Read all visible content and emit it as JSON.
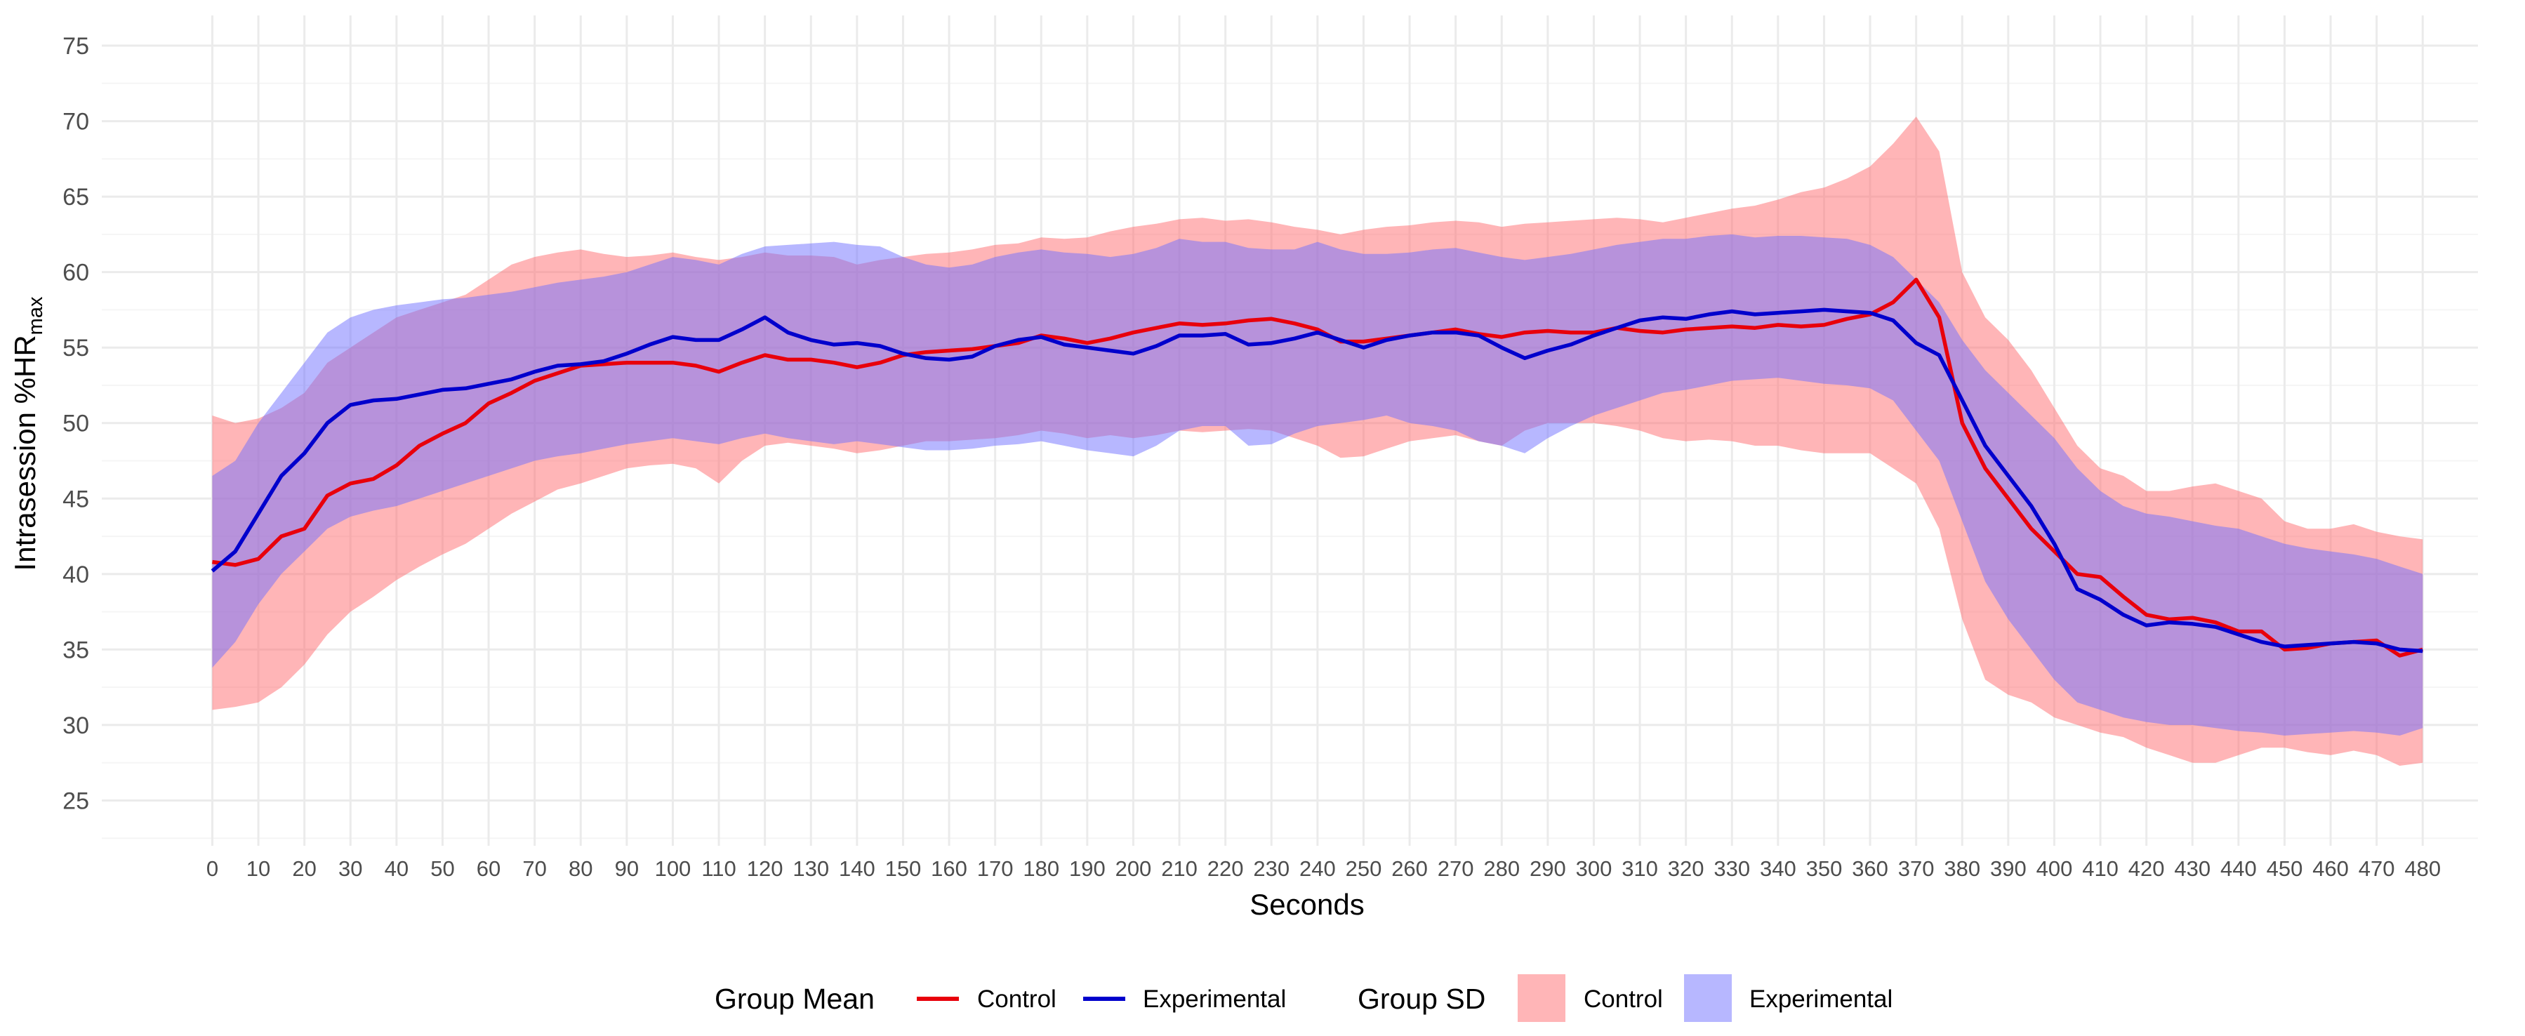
{
  "chart_data": {
    "type": "line",
    "title": "",
    "xlabel": "Seconds",
    "ylabel": "Intrasession %HR",
    "ylabel_subscript": "max",
    "xlim": [
      -24,
      492
    ],
    "ylim": [
      22,
      77
    ],
    "x_ticks": [
      0,
      10,
      20,
      30,
      40,
      50,
      60,
      70,
      80,
      90,
      100,
      110,
      120,
      130,
      140,
      150,
      160,
      170,
      180,
      190,
      200,
      210,
      220,
      230,
      240,
      250,
      260,
      270,
      280,
      290,
      300,
      310,
      320,
      330,
      340,
      350,
      360,
      370,
      380,
      390,
      400,
      410,
      420,
      430,
      440,
      450,
      460,
      470,
      480
    ],
    "y_ticks": [
      25,
      30,
      35,
      40,
      45,
      50,
      55,
      60,
      65,
      70,
      75
    ],
    "series": [
      {
        "name": "Control",
        "color": "#e8000b",
        "x": [
          0,
          5,
          10,
          15,
          20,
          25,
          30,
          35,
          40,
          45,
          50,
          55,
          60,
          65,
          70,
          75,
          80,
          85,
          90,
          95,
          100,
          105,
          110,
          115,
          120,
          125,
          130,
          135,
          140,
          145,
          150,
          155,
          160,
          165,
          170,
          175,
          180,
          185,
          190,
          195,
          200,
          205,
          210,
          215,
          220,
          225,
          230,
          235,
          240,
          245,
          250,
          255,
          260,
          265,
          270,
          275,
          280,
          285,
          290,
          295,
          300,
          305,
          310,
          315,
          320,
          325,
          330,
          335,
          340,
          345,
          350,
          355,
          360,
          365,
          370,
          375,
          380,
          385,
          390,
          395,
          400,
          405,
          410,
          415,
          420,
          425,
          430,
          435,
          440,
          445,
          450,
          455,
          460,
          465,
          470,
          475,
          480
        ],
        "values": [
          40.8,
          40.6,
          41.0,
          42.5,
          43.0,
          45.2,
          46.0,
          46.3,
          47.2,
          48.5,
          49.3,
          50.0,
          51.3,
          52.0,
          52.8,
          53.3,
          53.8,
          53.9,
          54.0,
          54.0,
          54.0,
          53.8,
          53.4,
          54.0,
          54.5,
          54.2,
          54.2,
          54.0,
          53.7,
          54.0,
          54.5,
          54.7,
          54.8,
          54.9,
          55.1,
          55.3,
          55.8,
          55.6,
          55.3,
          55.6,
          56.0,
          56.3,
          56.6,
          56.5,
          56.6,
          56.8,
          56.9,
          56.6,
          56.2,
          55.4,
          55.4,
          55.6,
          55.8,
          56.0,
          56.2,
          55.9,
          55.7,
          56.0,
          56.1,
          56.0,
          56.0,
          56.3,
          56.1,
          56.0,
          56.2,
          56.3,
          56.4,
          56.3,
          56.5,
          56.4,
          56.5,
          56.9,
          57.2,
          58.0,
          59.5,
          57.0,
          50.0,
          47.0,
          45.0,
          43.0,
          41.5,
          40.0,
          39.8,
          38.5,
          37.3,
          37.0,
          37.1,
          36.8,
          36.2,
          36.2,
          35.0,
          35.1,
          35.4,
          35.5,
          35.6,
          34.6,
          35.0
        ],
        "sd_lower": [
          31.0,
          31.2,
          31.5,
          32.5,
          34.0,
          36.0,
          37.5,
          38.5,
          39.6,
          40.5,
          41.3,
          42.0,
          43.0,
          44.0,
          44.8,
          45.6,
          46.0,
          46.5,
          47.0,
          47.2,
          47.3,
          47.0,
          46.0,
          47.5,
          48.5,
          48.7,
          48.5,
          48.3,
          48.0,
          48.2,
          48.5,
          48.8,
          48.8,
          48.9,
          49.0,
          49.2,
          49.5,
          49.3,
          49.0,
          49.2,
          49.0,
          49.2,
          49.5,
          49.4,
          49.5,
          49.6,
          49.5,
          49.0,
          48.5,
          47.7,
          47.8,
          48.3,
          48.8,
          49.0,
          49.2,
          48.8,
          48.5,
          49.5,
          50.0,
          50.0,
          50.0,
          49.8,
          49.5,
          49.0,
          48.8,
          48.9,
          48.8,
          48.5,
          48.5,
          48.2,
          48.0,
          48.0,
          48.0,
          47.0,
          46.0,
          43.0,
          37.0,
          33.0,
          32.0,
          31.5,
          30.5,
          30.0,
          29.5,
          29.2,
          28.5,
          28.0,
          27.5,
          27.5,
          28.0,
          28.5,
          28.5,
          28.2,
          28.0,
          28.3,
          28.0,
          27.3,
          27.5
        ],
        "sd_upper": [
          50.5,
          50.0,
          50.3,
          51.0,
          52.0,
          54.0,
          55.0,
          56.0,
          57.0,
          57.5,
          58.0,
          58.5,
          59.5,
          60.5,
          61.0,
          61.3,
          61.5,
          61.2,
          61.0,
          61.1,
          61.3,
          61.0,
          60.8,
          61.0,
          61.3,
          61.1,
          61.1,
          61.0,
          60.5,
          60.8,
          61.0,
          61.2,
          61.3,
          61.5,
          61.8,
          61.9,
          62.3,
          62.2,
          62.3,
          62.7,
          63.0,
          63.2,
          63.5,
          63.6,
          63.4,
          63.5,
          63.3,
          63.0,
          62.8,
          62.5,
          62.8,
          63.0,
          63.1,
          63.3,
          63.4,
          63.3,
          63.0,
          63.2,
          63.3,
          63.4,
          63.5,
          63.6,
          63.5,
          63.3,
          63.6,
          63.9,
          64.2,
          64.4,
          64.8,
          65.3,
          65.6,
          66.2,
          67.0,
          68.5,
          70.3,
          68.0,
          60.0,
          57.0,
          55.5,
          53.5,
          51.0,
          48.5,
          47.0,
          46.5,
          45.5,
          45.5,
          45.8,
          46.0,
          45.5,
          45.0,
          43.5,
          43.0,
          43.0,
          43.3,
          42.8,
          42.5,
          42.3
        ]
      },
      {
        "name": "Experimental",
        "color": "#0000cc",
        "x": [
          0,
          5,
          10,
          15,
          20,
          25,
          30,
          35,
          40,
          45,
          50,
          55,
          60,
          65,
          70,
          75,
          80,
          85,
          90,
          95,
          100,
          105,
          110,
          115,
          120,
          125,
          130,
          135,
          140,
          145,
          150,
          155,
          160,
          165,
          170,
          175,
          180,
          185,
          190,
          195,
          200,
          205,
          210,
          215,
          220,
          225,
          230,
          235,
          240,
          245,
          250,
          255,
          260,
          265,
          270,
          275,
          280,
          285,
          290,
          295,
          300,
          305,
          310,
          315,
          320,
          325,
          330,
          335,
          340,
          345,
          350,
          355,
          360,
          365,
          370,
          375,
          380,
          385,
          390,
          395,
          400,
          405,
          410,
          415,
          420,
          425,
          430,
          435,
          440,
          445,
          450,
          455,
          460,
          465,
          470,
          475,
          480
        ],
        "values": [
          40.2,
          41.5,
          44.0,
          46.5,
          48.0,
          50.0,
          51.2,
          51.5,
          51.6,
          51.9,
          52.2,
          52.3,
          52.6,
          52.9,
          53.4,
          53.8,
          53.9,
          54.1,
          54.6,
          55.2,
          55.7,
          55.5,
          55.5,
          56.2,
          57.0,
          56.0,
          55.5,
          55.2,
          55.3,
          55.1,
          54.6,
          54.3,
          54.2,
          54.4,
          55.1,
          55.5,
          55.7,
          55.2,
          55.0,
          54.8,
          54.6,
          55.1,
          55.8,
          55.8,
          55.9,
          55.2,
          55.3,
          55.6,
          56.0,
          55.5,
          55.0,
          55.5,
          55.8,
          56.0,
          56.0,
          55.8,
          55.0,
          54.3,
          54.8,
          55.2,
          55.8,
          56.3,
          56.8,
          57.0,
          56.9,
          57.2,
          57.4,
          57.2,
          57.3,
          57.4,
          57.5,
          57.4,
          57.3,
          56.8,
          55.3,
          54.5,
          51.5,
          48.5,
          46.5,
          44.5,
          42.0,
          39.0,
          38.3,
          37.3,
          36.6,
          36.8,
          36.7,
          36.5,
          36.0,
          35.5,
          35.2,
          35.3,
          35.4,
          35.5,
          35.4,
          35.0,
          34.9
        ],
        "sd_lower": [
          33.8,
          35.5,
          38.0,
          40.0,
          41.5,
          43.0,
          43.8,
          44.2,
          44.5,
          45.0,
          45.5,
          46.0,
          46.5,
          47.0,
          47.5,
          47.8,
          48.0,
          48.3,
          48.6,
          48.8,
          49.0,
          48.8,
          48.6,
          49.0,
          49.3,
          49.0,
          48.8,
          48.6,
          48.8,
          48.6,
          48.4,
          48.2,
          48.2,
          48.3,
          48.5,
          48.6,
          48.8,
          48.5,
          48.2,
          48.0,
          47.8,
          48.5,
          49.5,
          49.8,
          49.8,
          48.5,
          48.6,
          49.3,
          49.8,
          50.0,
          50.2,
          50.5,
          50.0,
          49.8,
          49.5,
          48.8,
          48.5,
          48.0,
          49.0,
          49.8,
          50.5,
          51.0,
          51.5,
          52.0,
          52.2,
          52.5,
          52.8,
          52.9,
          53.0,
          52.8,
          52.6,
          52.5,
          52.3,
          51.5,
          49.5,
          47.5,
          43.5,
          39.5,
          37.0,
          35.0,
          33.0,
          31.5,
          31.0,
          30.5,
          30.2,
          30.0,
          30.0,
          29.8,
          29.6,
          29.5,
          29.3,
          29.4,
          29.5,
          29.6,
          29.5,
          29.3,
          29.8
        ],
        "sd_upper": [
          46.5,
          47.5,
          50.0,
          52.0,
          54.0,
          56.0,
          57.0,
          57.5,
          57.8,
          58.0,
          58.2,
          58.3,
          58.5,
          58.7,
          59.0,
          59.3,
          59.5,
          59.7,
          60.0,
          60.5,
          61.0,
          60.8,
          60.5,
          61.2,
          61.7,
          61.8,
          61.9,
          62.0,
          61.8,
          61.7,
          61.0,
          60.5,
          60.3,
          60.5,
          61.0,
          61.3,
          61.5,
          61.3,
          61.2,
          61.0,
          61.2,
          61.6,
          62.2,
          62.0,
          62.0,
          61.6,
          61.5,
          61.5,
          62.0,
          61.5,
          61.2,
          61.2,
          61.3,
          61.5,
          61.6,
          61.3,
          61.0,
          60.8,
          61.0,
          61.2,
          61.5,
          61.8,
          62.0,
          62.2,
          62.2,
          62.4,
          62.5,
          62.3,
          62.4,
          62.4,
          62.3,
          62.2,
          61.8,
          61.0,
          59.5,
          58.0,
          55.5,
          53.5,
          52.0,
          50.5,
          49.0,
          47.0,
          45.5,
          44.5,
          44.0,
          43.8,
          43.5,
          43.2,
          43.0,
          42.5,
          42.0,
          41.7,
          41.5,
          41.3,
          41.0,
          40.5,
          40.0
        ]
      }
    ],
    "legend": {
      "position": "bottom",
      "mean_title": "Group Mean",
      "sd_title": "Group SD",
      "entries": [
        "Control",
        "Experimental"
      ]
    },
    "colors": {
      "control_line": "#e8000b",
      "experimental_line": "#0000cc",
      "control_band": "#ff6b70",
      "experimental_band": "#7070ff",
      "grid": "#ebebeb",
      "grid_minor": "#f5f5f5"
    }
  }
}
